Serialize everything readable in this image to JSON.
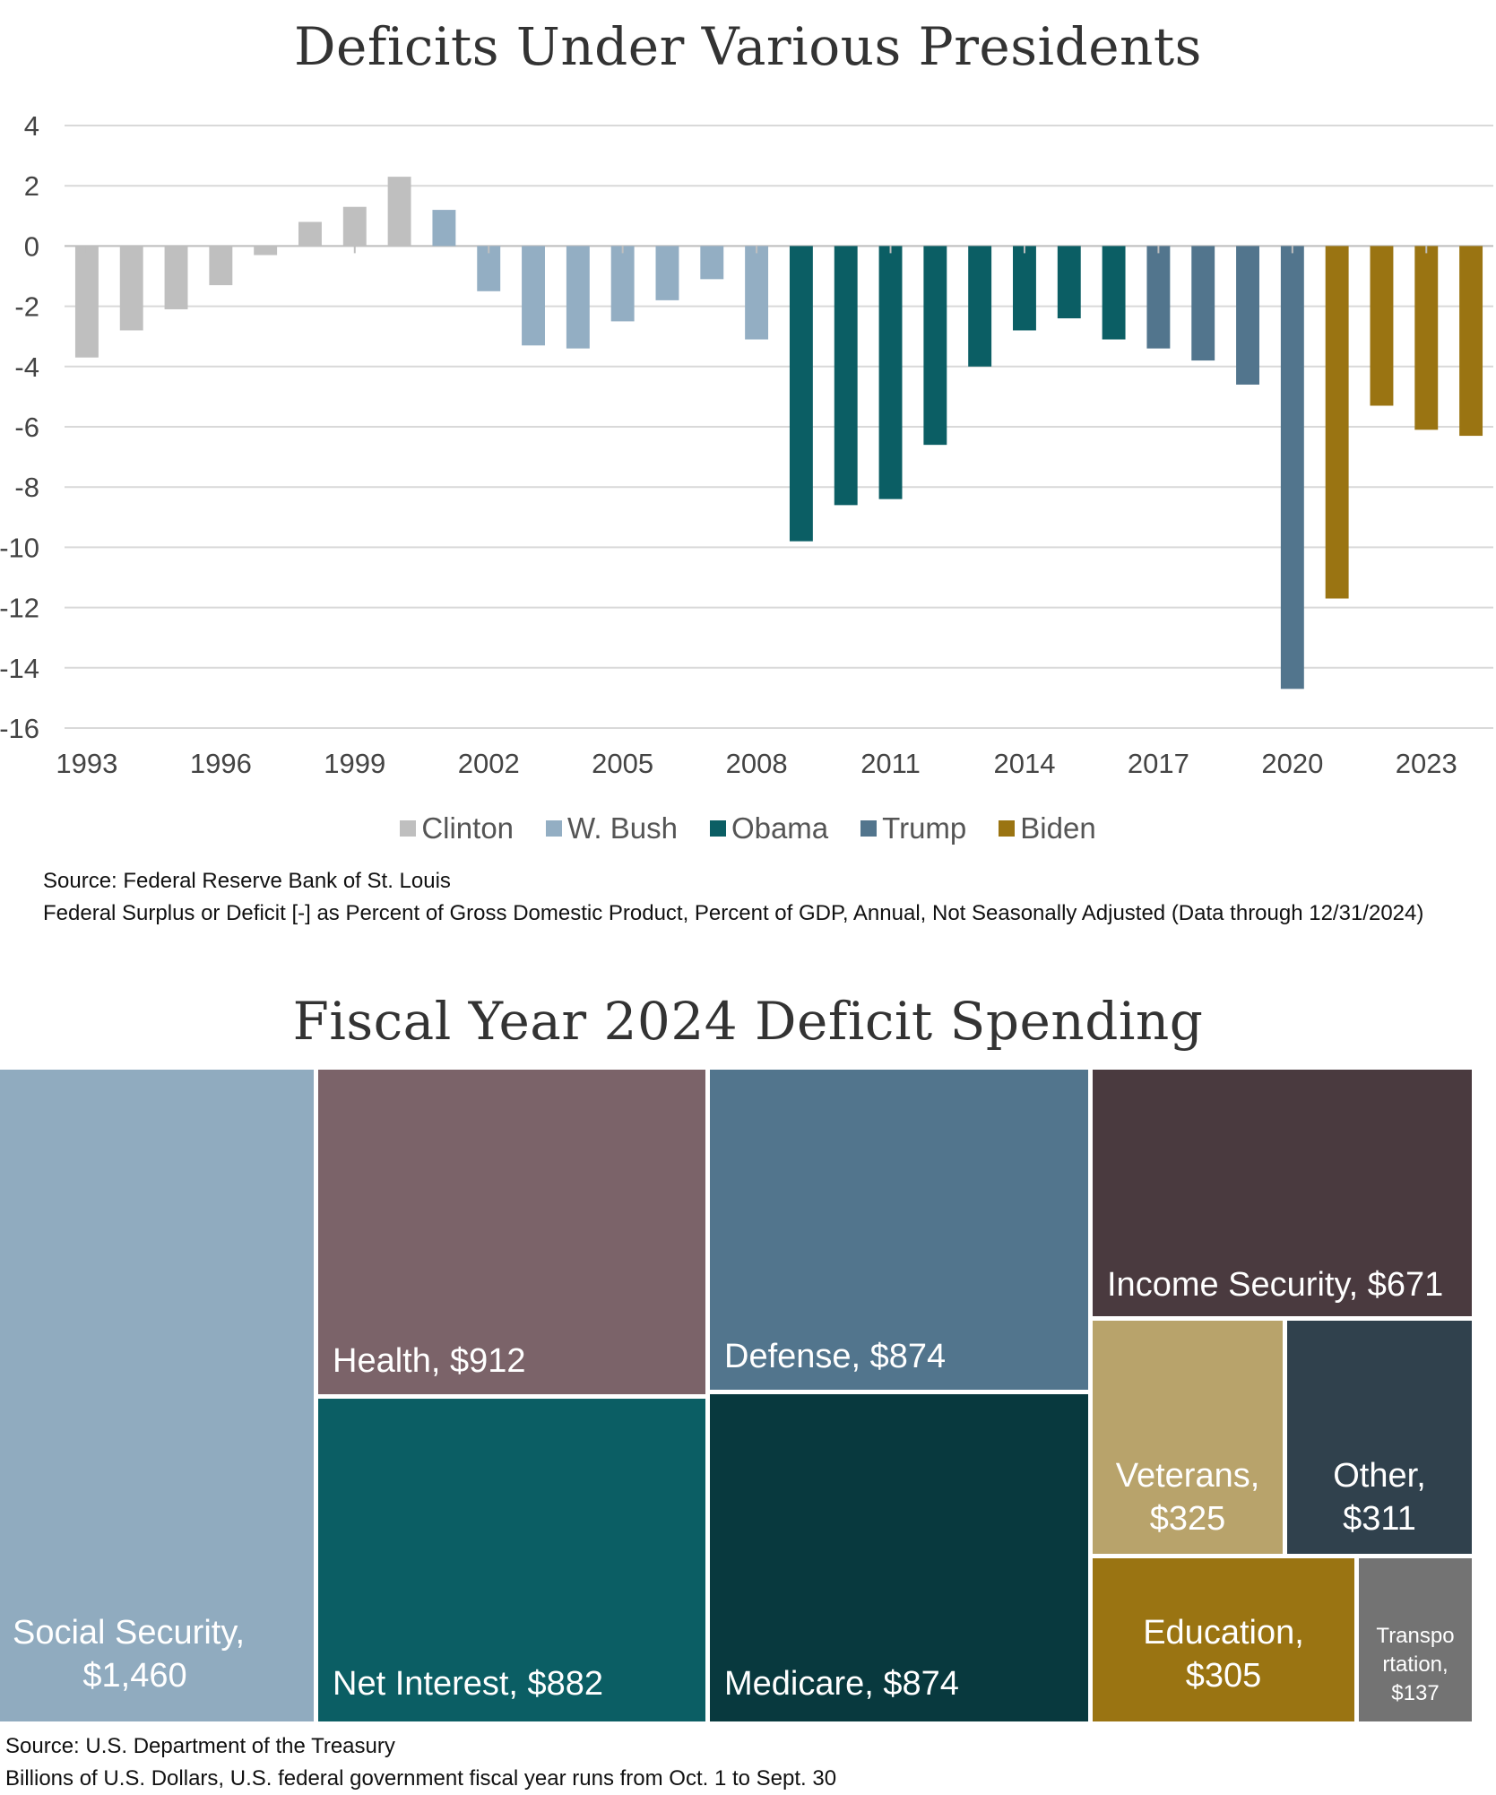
{
  "bar_chart": {
    "title": "Deficits Under Various Presidents",
    "source_line1": "Source: Federal Reserve Bank of St. Louis",
    "source_line2": "Federal Surplus or Deficit [-] as Percent of Gross Domestic Product, Percent of GDP, Annual, Not Seasonally Adjusted (Data through 12/31/2024)"
  },
  "treemap": {
    "title": "Fiscal Year 2024 Deficit Spending",
    "source_line1": "Source: U.S. Department of the Treasury",
    "source_line2": "Billions of U.S. Dollars, U.S. federal government fiscal year runs from Oct. 1 to Sept. 30"
  },
  "colors": {
    "Clinton": "#bfbfbf",
    "W. Bush": "#93aec3",
    "Obama": "#0b5e64",
    "Trump": "#52758d",
    "Biden": "#9a7412"
  },
  "chart_data": [
    {
      "type": "bar",
      "title": "Deficits Under Various Presidents",
      "ylim": [
        -16,
        4
      ],
      "yticks": [
        4,
        2,
        0,
        -2,
        -4,
        -6,
        -8,
        -10,
        -12,
        -14,
        -16
      ],
      "xtick_labels": [
        "1993",
        "1996",
        "1999",
        "2002",
        "2005",
        "2008",
        "2011",
        "2014",
        "2017",
        "2020",
        "2023"
      ],
      "grid": true,
      "legend_position": "bottom",
      "legend": [
        "Clinton",
        "W. Bush",
        "Obama",
        "Trump",
        "Biden"
      ],
      "x": [
        1993,
        1994,
        1995,
        1996,
        1997,
        1998,
        1999,
        2000,
        2001,
        2002,
        2003,
        2004,
        2005,
        2006,
        2007,
        2008,
        2009,
        2010,
        2011,
        2012,
        2013,
        2014,
        2015,
        2016,
        2017,
        2018,
        2019,
        2020,
        2021,
        2022,
        2023,
        2024
      ],
      "values": [
        -3.7,
        -2.8,
        -2.1,
        -1.3,
        -0.3,
        0.8,
        1.3,
        2.3,
        1.2,
        -1.5,
        -3.3,
        -3.4,
        -2.5,
        -1.8,
        -1.1,
        -3.1,
        -9.8,
        -8.6,
        -8.4,
        -6.6,
        -4.0,
        -2.8,
        -2.4,
        -3.1,
        -3.4,
        -3.8,
        -4.6,
        -14.7,
        -11.7,
        -5.3,
        -6.1,
        -6.3
      ],
      "president": [
        "Clinton",
        "Clinton",
        "Clinton",
        "Clinton",
        "Clinton",
        "Clinton",
        "Clinton",
        "Clinton",
        "W. Bush",
        "W. Bush",
        "W. Bush",
        "W. Bush",
        "W. Bush",
        "W. Bush",
        "W. Bush",
        "W. Bush",
        "Obama",
        "Obama",
        "Obama",
        "Obama",
        "Obama",
        "Obama",
        "Obama",
        "Obama",
        "Trump",
        "Trump",
        "Trump",
        "Trump",
        "Biden",
        "Biden",
        "Biden",
        "Biden"
      ]
    },
    {
      "type": "treemap",
      "title": "Fiscal Year 2024 Deficit Spending",
      "items": [
        {
          "name": "Social Security",
          "label_lines": [
            "Social Security,",
            "$1,460"
          ],
          "value": 1460,
          "color": "#90abbf"
        },
        {
          "name": "Health",
          "label_lines": [
            "Health, $912"
          ],
          "value": 912,
          "color": "#7b6369"
        },
        {
          "name": "Net Interest",
          "label_lines": [
            "Net Interest, $882"
          ],
          "value": 882,
          "color": "#0b5e64"
        },
        {
          "name": "Defense",
          "label_lines": [
            "Defense, $874"
          ],
          "value": 874,
          "color": "#52758d"
        },
        {
          "name": "Medicare",
          "label_lines": [
            "Medicare, $874"
          ],
          "value": 874,
          "color": "#08393e"
        },
        {
          "name": "Income Security",
          "label_lines": [
            "Income Security, $671"
          ],
          "value": 671,
          "color": "#4a3a3f"
        },
        {
          "name": "Veterans",
          "label_lines": [
            "Veterans,",
            "$325"
          ],
          "value": 325,
          "color": "#b8a36b"
        },
        {
          "name": "Other",
          "label_lines": [
            "Other,",
            "$311"
          ],
          "value": 311,
          "color": "#30414d"
        },
        {
          "name": "Education",
          "label_lines": [
            "Education,",
            "$305"
          ],
          "value": 305,
          "color": "#9a7412"
        },
        {
          "name": "Transportation",
          "label_lines": [
            "Transpo",
            "rtation,",
            "$137"
          ],
          "value": 137,
          "color": "#737373"
        }
      ]
    }
  ]
}
